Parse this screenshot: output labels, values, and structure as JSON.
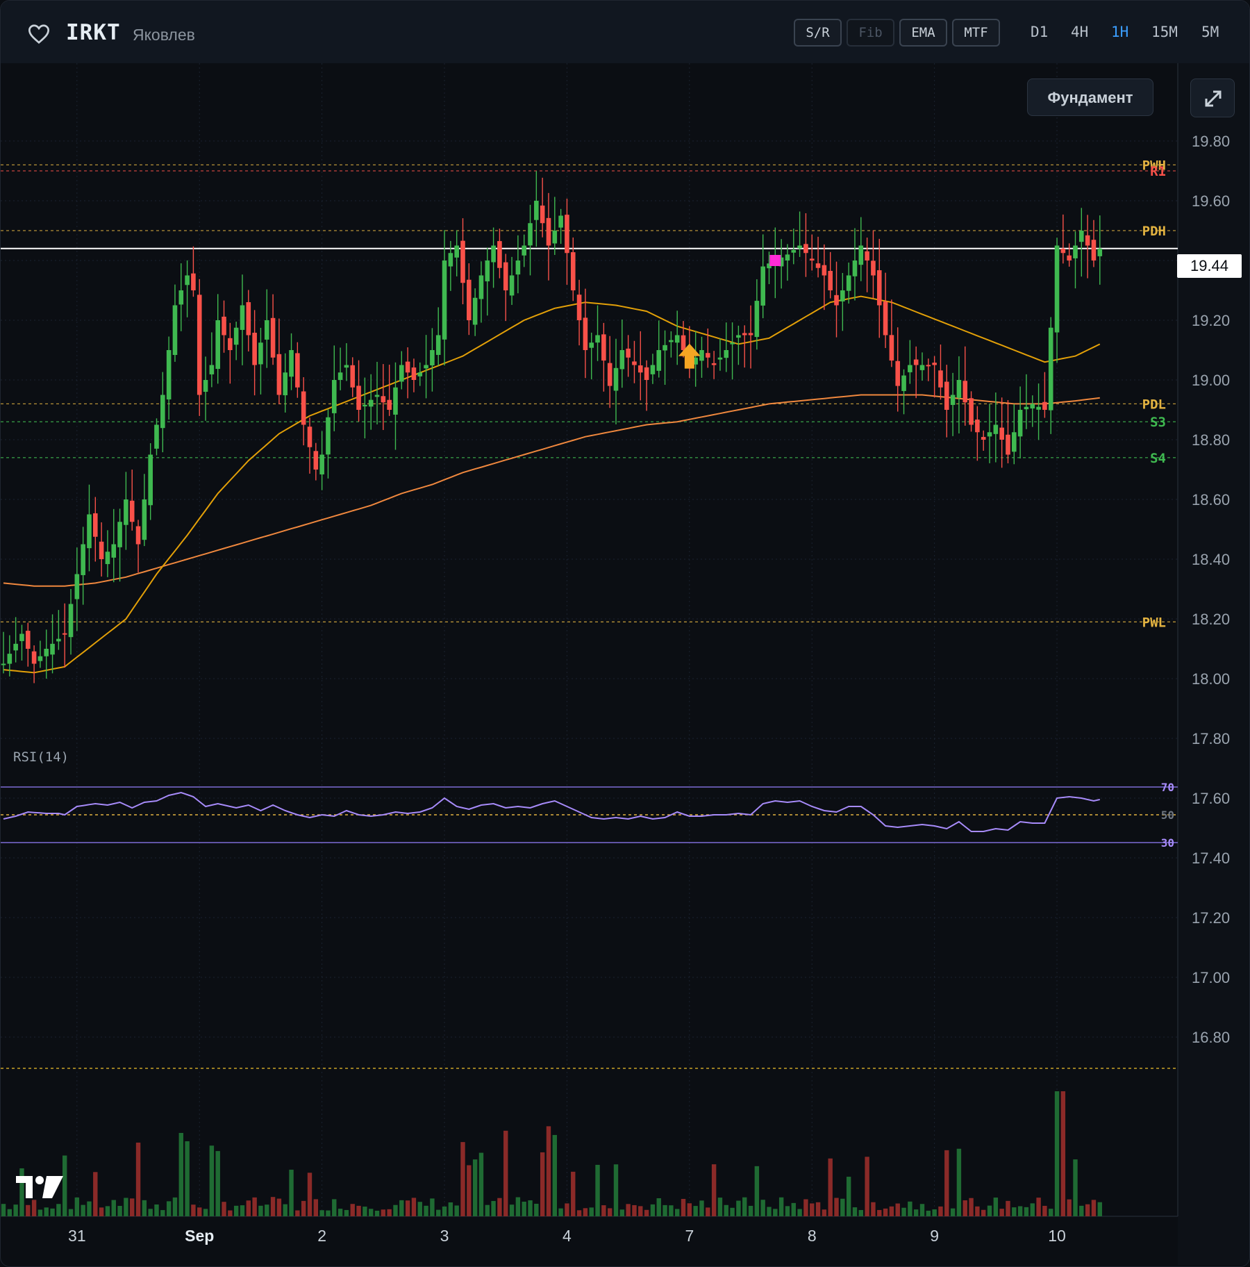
{
  "header": {
    "ticker": "IRKT",
    "company": "Яковлев",
    "tools": [
      {
        "label": "S/R",
        "active": true
      },
      {
        "label": "Fib",
        "active": false
      },
      {
        "label": "EMA",
        "active": true
      },
      {
        "label": "MTF",
        "active": true
      }
    ],
    "timeframes": [
      {
        "label": "D1",
        "active": false
      },
      {
        "label": "4H",
        "active": false
      },
      {
        "label": "1H",
        "active": true
      },
      {
        "label": "15M",
        "active": false
      },
      {
        "label": "5M",
        "active": false
      }
    ],
    "fundamental_label": "Фундамент"
  },
  "colors": {
    "up": "#3fb950",
    "down": "#f85149",
    "ema_fast": "#e3a008",
    "ema_slow": "#f0883e",
    "rsi": "#a78bfa",
    "level_gold": "#e3b341",
    "level_red": "#f85149",
    "level_green": "#3fb950",
    "active_tf": "#3b9eff"
  },
  "chart_data": {
    "type": "candlestick",
    "timeframe": "1H",
    "last_price": "19.44",
    "y_axis": {
      "min": 16.7,
      "max": 19.9,
      "ticks": [
        "19.80",
        "19.60",
        "19.40",
        "19.20",
        "19.00",
        "18.80",
        "18.60",
        "18.40",
        "18.20",
        "18.00",
        "17.80",
        "17.60",
        "17.40",
        "17.20",
        "17.00",
        "16.80"
      ]
    },
    "x_labels": [
      {
        "label": "31",
        "bar": 12
      },
      {
        "label": "Sep",
        "bar": 32
      },
      {
        "label": "2",
        "bar": 52
      },
      {
        "label": "3",
        "bar": 72
      },
      {
        "label": "4",
        "bar": 92
      },
      {
        "label": "7",
        "bar": 112
      },
      {
        "label": "8",
        "bar": 132
      },
      {
        "label": "9",
        "bar": 152
      },
      {
        "label": "10",
        "bar": 172
      }
    ],
    "levels": [
      {
        "label": "PWH",
        "value": 19.72,
        "kind": "gold"
      },
      {
        "label": "R1",
        "value": 19.7,
        "kind": "red"
      },
      {
        "label": "PDH",
        "value": 19.5,
        "kind": "gold"
      },
      {
        "label": "PDL",
        "value": 18.92,
        "kind": "gold"
      },
      {
        "label": "S3",
        "value": 18.86,
        "kind": "green"
      },
      {
        "label": "S4",
        "value": 18.74,
        "kind": "green"
      },
      {
        "label": "PWL",
        "value": 18.19,
        "kind": "gold"
      }
    ],
    "signals": [
      {
        "type": "buy-arrow",
        "bar": 112,
        "value": 19.08
      },
      {
        "type": "marker",
        "bar": 126,
        "value": 19.4
      }
    ],
    "rsi_label": "RSI(14)",
    "rsi_levels": [
      "70",
      "50",
      "30"
    ],
    "rsi_keys": [
      [
        0,
        47
      ],
      [
        2,
        49
      ],
      [
        4,
        52
      ],
      [
        7,
        51
      ],
      [
        9,
        51
      ],
      [
        10,
        50
      ],
      [
        12,
        56
      ],
      [
        15,
        58
      ],
      [
        17,
        57
      ],
      [
        19,
        59
      ],
      [
        21,
        55
      ],
      [
        23,
        59
      ],
      [
        25,
        60
      ],
      [
        27,
        64
      ],
      [
        29,
        66
      ],
      [
        31,
        63
      ],
      [
        33,
        56
      ],
      [
        35,
        58
      ],
      [
        38,
        55
      ],
      [
        40,
        57
      ],
      [
        42,
        53
      ],
      [
        44,
        57
      ],
      [
        46,
        53
      ],
      [
        48,
        50
      ],
      [
        50,
        48
      ],
      [
        52,
        50
      ],
      [
        54,
        49
      ],
      [
        56,
        53
      ],
      [
        58,
        50
      ],
      [
        60,
        49
      ],
      [
        62,
        50
      ],
      [
        64,
        52
      ],
      [
        66,
        51
      ],
      [
        68,
        52
      ],
      [
        70,
        55
      ],
      [
        72,
        62
      ],
      [
        74,
        56
      ],
      [
        76,
        54
      ],
      [
        78,
        57
      ],
      [
        80,
        58
      ],
      [
        82,
        55
      ],
      [
        84,
        56
      ],
      [
        86,
        55
      ],
      [
        88,
        58
      ],
      [
        90,
        60
      ],
      [
        92,
        56
      ],
      [
        94,
        52
      ],
      [
        96,
        48
      ],
      [
        98,
        47
      ],
      [
        100,
        48
      ],
      [
        102,
        47
      ],
      [
        104,
        49
      ],
      [
        106,
        47
      ],
      [
        108,
        48
      ],
      [
        110,
        52
      ],
      [
        112,
        49
      ],
      [
        114,
        49
      ],
      [
        116,
        50
      ],
      [
        118,
        50
      ],
      [
        120,
        51
      ],
      [
        122,
        50
      ],
      [
        124,
        58
      ],
      [
        126,
        60
      ],
      [
        128,
        59
      ],
      [
        130,
        60
      ],
      [
        132,
        56
      ],
      [
        134,
        53
      ],
      [
        136,
        52
      ],
      [
        138,
        56
      ],
      [
        140,
        56
      ],
      [
        142,
        50
      ],
      [
        144,
        42
      ],
      [
        146,
        41
      ],
      [
        148,
        42
      ],
      [
        150,
        43
      ],
      [
        152,
        42
      ],
      [
        154,
        40
      ],
      [
        156,
        45
      ],
      [
        158,
        38
      ],
      [
        160,
        38
      ],
      [
        162,
        40
      ],
      [
        164,
        39
      ],
      [
        166,
        45
      ],
      [
        168,
        44
      ],
      [
        170,
        44
      ],
      [
        172,
        62
      ],
      [
        174,
        63
      ],
      [
        176,
        62
      ],
      [
        178,
        60
      ],
      [
        179,
        61
      ]
    ],
    "close_keys": [
      [
        0,
        18.05
      ],
      [
        3,
        18.15
      ],
      [
        5,
        18.05
      ],
      [
        7,
        18.1
      ],
      [
        10,
        18.15
      ],
      [
        12,
        18.35
      ],
      [
        14,
        18.55
      ],
      [
        16,
        18.4
      ],
      [
        18,
        18.45
      ],
      [
        20,
        18.6
      ],
      [
        22,
        18.45
      ],
      [
        24,
        18.75
      ],
      [
        26,
        18.95
      ],
      [
        28,
        19.25
      ],
      [
        30,
        19.35
      ],
      [
        31,
        19.3
      ],
      [
        32,
        18.95
      ],
      [
        34,
        19.05
      ],
      [
        35,
        19.2
      ],
      [
        37,
        19.1
      ],
      [
        39,
        19.25
      ],
      [
        41,
        19.05
      ],
      [
        43,
        19.2
      ],
      [
        45,
        18.95
      ],
      [
        47,
        19.1
      ],
      [
        49,
        18.85
      ],
      [
        51,
        18.7
      ],
      [
        52,
        18.75
      ],
      [
        54,
        19.0
      ],
      [
        56,
        19.05
      ],
      [
        58,
        18.9
      ],
      [
        61,
        18.95
      ],
      [
        63,
        18.9
      ],
      [
        65,
        19.05
      ],
      [
        67,
        19.0
      ],
      [
        69,
        19.05
      ],
      [
        71,
        19.15
      ],
      [
        72,
        19.4
      ],
      [
        74,
        19.45
      ],
      [
        76,
        19.2
      ],
      [
        78,
        19.35
      ],
      [
        80,
        19.45
      ],
      [
        82,
        19.3
      ],
      [
        84,
        19.4
      ],
      [
        85,
        19.45
      ],
      [
        87,
        19.6
      ],
      [
        89,
        19.45
      ],
      [
        91,
        19.55
      ],
      [
        93,
        19.3
      ],
      [
        95,
        19.1
      ],
      [
        97,
        19.15
      ],
      [
        99,
        18.98
      ],
      [
        101,
        19.1
      ],
      [
        103,
        19.05
      ],
      [
        105,
        19.0
      ],
      [
        107,
        19.1
      ],
      [
        110,
        19.15
      ],
      [
        112,
        19.05
      ],
      [
        114,
        19.1
      ],
      [
        116,
        19.05
      ],
      [
        118,
        19.1
      ],
      [
        120,
        19.15
      ],
      [
        122,
        19.15
      ],
      [
        124,
        19.38
      ],
      [
        126,
        19.4
      ],
      [
        128,
        19.42
      ],
      [
        130,
        19.45
      ],
      [
        132,
        19.4
      ],
      [
        134,
        19.35
      ],
      [
        136,
        19.25
      ],
      [
        138,
        19.35
      ],
      [
        140,
        19.45
      ],
      [
        142,
        19.35
      ],
      [
        144,
        19.15
      ],
      [
        146,
        18.98
      ],
      [
        148,
        19.05
      ],
      [
        150,
        19.05
      ],
      [
        152,
        19.05
      ],
      [
        154,
        18.9
      ],
      [
        156,
        19.0
      ],
      [
        158,
        18.85
      ],
      [
        160,
        18.8
      ],
      [
        162,
        18.85
      ],
      [
        164,
        18.75
      ],
      [
        166,
        18.9
      ],
      [
        168,
        18.92
      ],
      [
        170,
        18.9
      ],
      [
        172,
        19.45
      ],
      [
        174,
        19.4
      ],
      [
        176,
        19.5
      ],
      [
        178,
        19.4
      ],
      [
        179,
        19.44
      ]
    ],
    "ema_fast_keys": [
      [
        0,
        18.03
      ],
      [
        5,
        18.02
      ],
      [
        10,
        18.04
      ],
      [
        15,
        18.12
      ],
      [
        20,
        18.2
      ],
      [
        25,
        18.35
      ],
      [
        30,
        18.48
      ],
      [
        35,
        18.62
      ],
      [
        40,
        18.73
      ],
      [
        45,
        18.82
      ],
      [
        50,
        18.88
      ],
      [
        55,
        18.92
      ],
      [
        60,
        18.96
      ],
      [
        65,
        19.0
      ],
      [
        70,
        19.04
      ],
      [
        75,
        19.08
      ],
      [
        80,
        19.14
      ],
      [
        85,
        19.2
      ],
      [
        90,
        19.24
      ],
      [
        95,
        19.26
      ],
      [
        100,
        19.25
      ],
      [
        105,
        19.23
      ],
      [
        110,
        19.18
      ],
      [
        115,
        19.15
      ],
      [
        120,
        19.12
      ],
      [
        125,
        19.14
      ],
      [
        130,
        19.2
      ],
      [
        135,
        19.26
      ],
      [
        140,
        19.28
      ],
      [
        145,
        19.26
      ],
      [
        150,
        19.22
      ],
      [
        155,
        19.18
      ],
      [
        160,
        19.14
      ],
      [
        165,
        19.1
      ],
      [
        170,
        19.06
      ],
      [
        175,
        19.08
      ],
      [
        179,
        19.12
      ]
    ],
    "ema_slow_keys": [
      [
        0,
        18.32
      ],
      [
        5,
        18.31
      ],
      [
        10,
        18.31
      ],
      [
        15,
        18.32
      ],
      [
        20,
        18.34
      ],
      [
        25,
        18.37
      ],
      [
        30,
        18.4
      ],
      [
        35,
        18.43
      ],
      [
        40,
        18.46
      ],
      [
        45,
        18.49
      ],
      [
        50,
        18.52
      ],
      [
        55,
        18.55
      ],
      [
        60,
        18.58
      ],
      [
        65,
        18.62
      ],
      [
        70,
        18.65
      ],
      [
        75,
        18.69
      ],
      [
        80,
        18.72
      ],
      [
        85,
        18.75
      ],
      [
        90,
        18.78
      ],
      [
        95,
        18.81
      ],
      [
        100,
        18.83
      ],
      [
        105,
        18.85
      ],
      [
        110,
        18.86
      ],
      [
        115,
        18.88
      ],
      [
        120,
        18.9
      ],
      [
        125,
        18.92
      ],
      [
        130,
        18.93
      ],
      [
        135,
        18.94
      ],
      [
        140,
        18.95
      ],
      [
        145,
        18.95
      ],
      [
        150,
        18.95
      ],
      [
        155,
        18.94
      ],
      [
        160,
        18.93
      ],
      [
        165,
        18.92
      ],
      [
        170,
        18.92
      ],
      [
        175,
        18.93
      ],
      [
        179,
        18.94
      ]
    ]
  }
}
